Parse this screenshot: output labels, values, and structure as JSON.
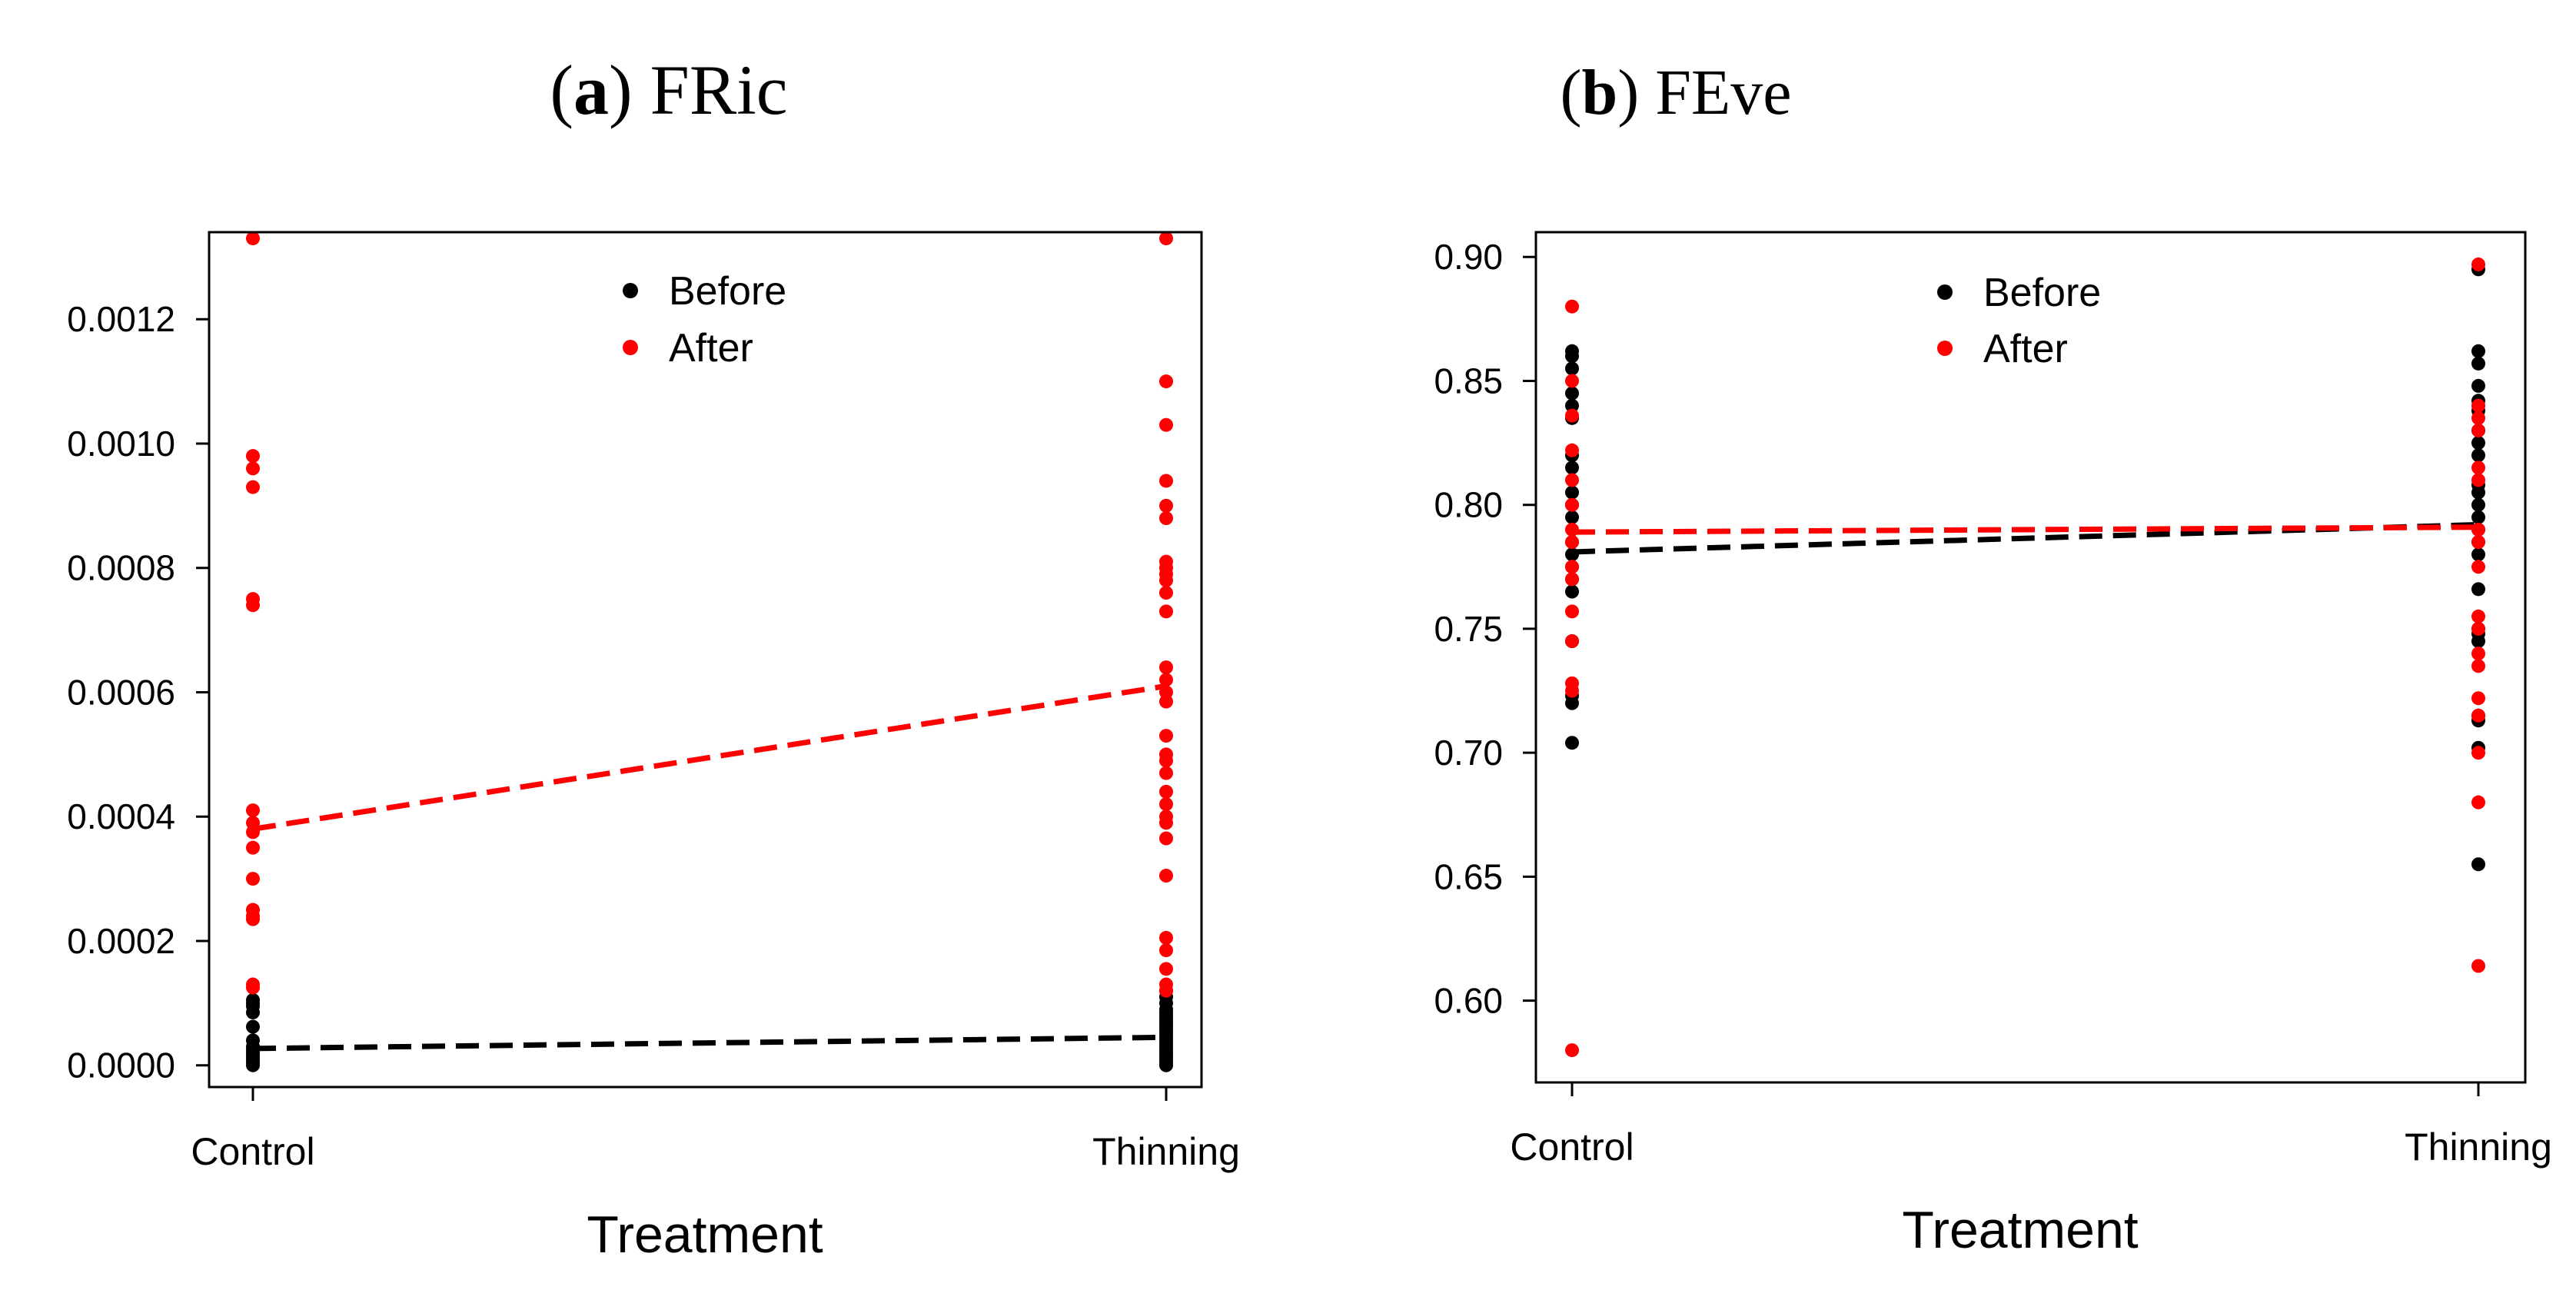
{
  "chart_data": [
    {
      "type": "scatter",
      "panel_label": "a",
      "title": "FRic",
      "xlabel": "Treatment",
      "ylabel": "",
      "categories": [
        "Control",
        "Thinning"
      ],
      "ylim": [
        -3.5e-05,
        0.00134
      ],
      "yticks": [
        "0.0000",
        "0.0002",
        "0.0004",
        "0.0006",
        "0.0008",
        "0.0010",
        "0.0012"
      ],
      "legend": [
        {
          "name": "Before",
          "color": "#000000"
        },
        {
          "name": "After",
          "color": "#ff0000"
        }
      ],
      "legend_position": "top-center",
      "series": [
        {
          "name": "Before",
          "color": "#000000",
          "points": {
            "Control": [
              0.0,
              5e-06,
              1e-05,
              1.5e-05,
              2e-05,
              2.5e-05,
              3e-05,
              4e-05,
              6.2e-05,
              8.5e-05,
              9.5e-05,
              0.0001,
              0.000105
            ],
            "Thinning": [
              0.0,
              5e-06,
              1e-05,
              1.5e-05,
              2e-05,
              2.5e-05,
              3e-05,
              3.5e-05,
              4e-05,
              4.5e-05,
              5e-05,
              5.5e-05,
              6e-05,
              6.5e-05,
              7e-05,
              7.5e-05,
              8e-05,
              8.5e-05,
              9e-05,
              0.0001,
              0.00011,
              0.00012
            ]
          },
          "trend": [
            2.7e-05,
            4.5e-05
          ]
        },
        {
          "name": "After",
          "color": "#ff0000",
          "points": {
            "Control": [
              0.00133,
              0.00098,
              0.00096,
              0.00093,
              0.00075,
              0.00074,
              0.00041,
              0.00039,
              0.000375,
              0.00035,
              0.0003,
              0.00025,
              0.00024,
              0.000235,
              0.00013,
              0.000125
            ],
            "Thinning": [
              0.00133,
              0.0011,
              0.00103,
              0.00094,
              0.0009,
              0.00088,
              0.00081,
              0.0008,
              0.00079,
              0.00078,
              0.00076,
              0.00073,
              0.00064,
              0.00062,
              0.0006,
              0.000585,
              0.00053,
              0.0005,
              0.00049,
              0.00047,
              0.00044,
              0.00042,
              0.0004,
              0.00039,
              0.000365,
              0.000305,
              0.000205,
              0.000185,
              0.000155,
              0.00013,
              0.00012
            ]
          },
          "trend": [
            0.00038,
            0.00061
          ]
        }
      ]
    },
    {
      "type": "scatter",
      "panel_label": "b",
      "title": "FEve",
      "xlabel": "Treatment",
      "ylabel": "",
      "categories": [
        "Control",
        "Thinning"
      ],
      "ylim": [
        0.567,
        0.91
      ],
      "yticks": [
        "0.60",
        "0.65",
        "0.70",
        "0.75",
        "0.80",
        "0.85",
        "0.90"
      ],
      "legend": [
        {
          "name": "Before",
          "color": "#000000"
        },
        {
          "name": "After",
          "color": "#ff0000"
        }
      ],
      "legend_position": "top-center",
      "series": [
        {
          "name": "Before",
          "color": "#000000",
          "points": {
            "Control": [
              0.862,
              0.86,
              0.855,
              0.845,
              0.84,
              0.835,
              0.82,
              0.815,
              0.805,
              0.8,
              0.795,
              0.785,
              0.78,
              0.775,
              0.77,
              0.765,
              0.745,
              0.723,
              0.72,
              0.704
            ],
            "Thinning": [
              0.895,
              0.862,
              0.857,
              0.848,
              0.842,
              0.838,
              0.83,
              0.825,
              0.82,
              0.808,
              0.805,
              0.8,
              0.795,
              0.79,
              0.785,
              0.78,
              0.766,
              0.75,
              0.748,
              0.745,
              0.715,
              0.713,
              0.702,
              0.655
            ]
          },
          "trend": [
            0.781,
            0.792
          ]
        },
        {
          "name": "After",
          "color": "#ff0000",
          "points": {
            "Control": [
              0.88,
              0.85,
              0.836,
              0.822,
              0.81,
              0.8,
              0.79,
              0.785,
              0.775,
              0.77,
              0.757,
              0.745,
              0.728,
              0.725,
              0.58
            ],
            "Thinning": [
              0.897,
              0.84,
              0.835,
              0.83,
              0.815,
              0.81,
              0.79,
              0.785,
              0.775,
              0.755,
              0.75,
              0.74,
              0.735,
              0.722,
              0.715,
              0.7,
              0.68,
              0.614
            ]
          },
          "trend": [
            0.789,
            0.791
          ]
        }
      ]
    }
  ]
}
